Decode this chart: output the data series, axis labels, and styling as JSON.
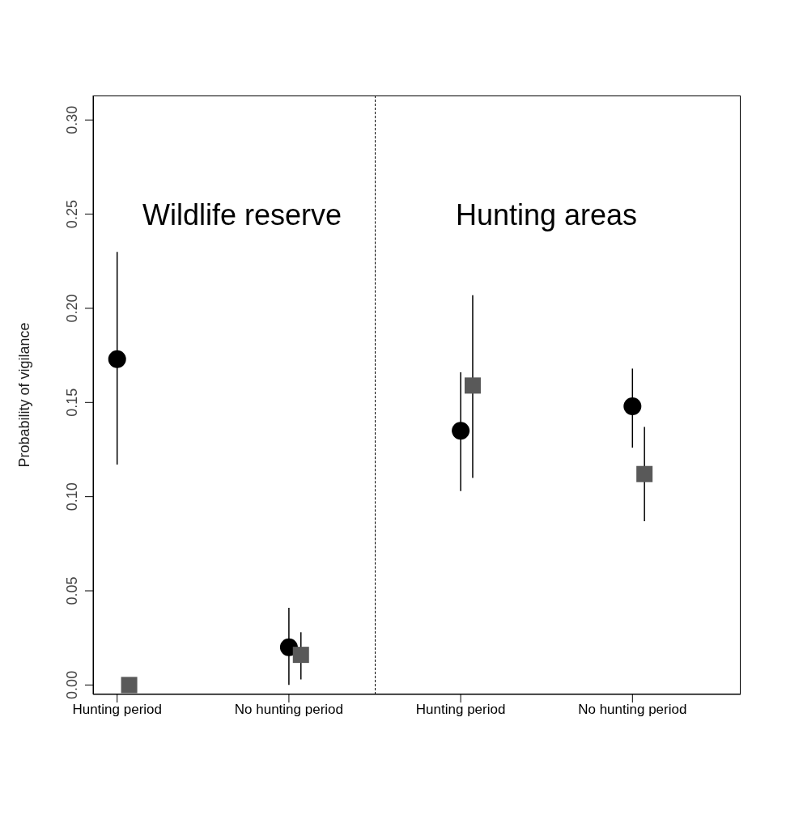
{
  "chart_data": {
    "type": "scatter",
    "ylabel": "Probability of vigilance",
    "categories": [
      "Hunting period",
      "No hunting period",
      "Hunting period",
      "No hunting period"
    ],
    "series": [
      {
        "color": "#000000",
        "marker": "circle",
        "values": [
          0.173,
          0.02,
          0.135,
          0.148
        ],
        "errors": [
          [
            0.117,
            0.23
          ],
          [
            0.0,
            0.041
          ],
          [
            0.103,
            0.166
          ],
          [
            0.126,
            0.168
          ]
        ]
      },
      {
        "color": "#595959",
        "marker": "square",
        "values": [
          0.0,
          0.016,
          0.159,
          0.112
        ],
        "errors": [
          null,
          [
            0.003,
            0.028
          ],
          [
            0.11,
            0.207
          ],
          [
            0.087,
            0.137
          ]
        ]
      }
    ],
    "ylim": [
      -0.005,
      0.313
    ],
    "yticks": [
      {
        "value": 0,
        "label": "0.00"
      },
      {
        "value": 0.05,
        "label": "0.05"
      },
      {
        "value": 0.1,
        "label": "0.10"
      },
      {
        "value": 0.15,
        "label": "0.15"
      },
      {
        "value": 0.2,
        "label": "0.20"
      },
      {
        "value": 0.25,
        "label": "0.25"
      },
      {
        "value": 0.3,
        "label": "0.30"
      }
    ],
    "annotations": [
      "Wildlife reserve",
      "Hunting areas"
    ],
    "grid": false,
    "legend": false
  }
}
